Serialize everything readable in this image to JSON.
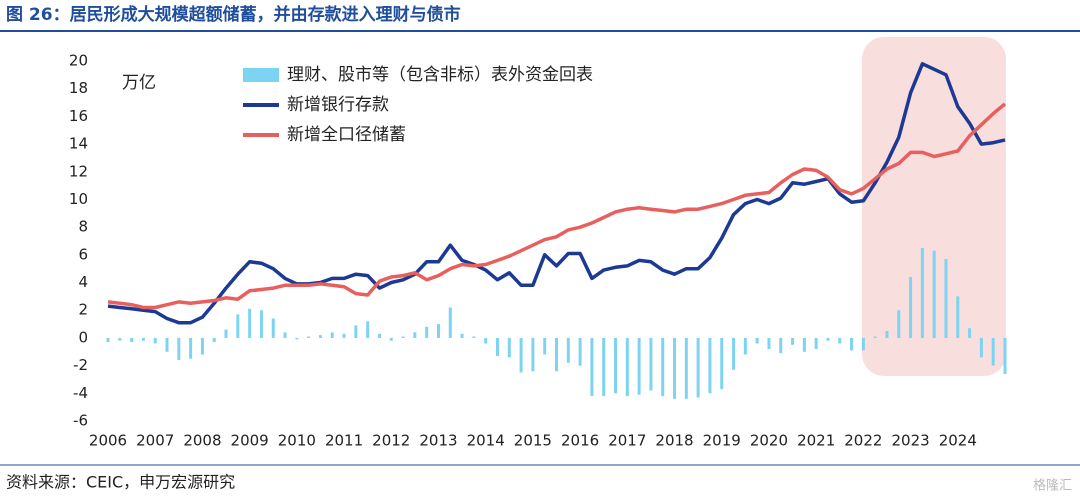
{
  "header": {
    "title": "图 26：居民形成大规模超额储蓄，并由存款进入理财与债市"
  },
  "chart_data": {
    "type": "combo",
    "unit_label": "万亿",
    "x": [
      2006,
      2006.25,
      2006.5,
      2006.75,
      2007,
      2007.25,
      2007.5,
      2007.75,
      2008,
      2008.25,
      2008.5,
      2008.75,
      2009,
      2009.25,
      2009.5,
      2009.75,
      2010,
      2010.25,
      2010.5,
      2010.75,
      2011,
      2011.25,
      2011.5,
      2011.75,
      2012,
      2012.25,
      2012.5,
      2012.75,
      2013,
      2013.25,
      2013.5,
      2013.75,
      2014,
      2014.25,
      2014.5,
      2014.75,
      2015,
      2015.25,
      2015.5,
      2015.75,
      2016,
      2016.25,
      2016.5,
      2016.75,
      2017,
      2017.25,
      2017.5,
      2017.75,
      2018,
      2018.25,
      2018.5,
      2018.75,
      2019,
      2019.25,
      2019.5,
      2019.75,
      2020,
      2020.25,
      2020.5,
      2020.75,
      2021,
      2021.25,
      2021.5,
      2021.75,
      2022,
      2022.25,
      2022.5,
      2022.75,
      2023,
      2023.25,
      2023.5,
      2023.75,
      2024,
      2024.25,
      2024.5,
      2024.75,
      2025
    ],
    "series": [
      {
        "name": "理财、股市等（包含非标）表外资金回表",
        "type": "bar",
        "color": "#7dd3f2",
        "values": [
          -0.3,
          -0.2,
          -0.3,
          -0.2,
          -0.4,
          -1.0,
          -1.6,
          -1.5,
          -1.2,
          -0.3,
          0.6,
          1.7,
          2.1,
          2.0,
          1.4,
          0.4,
          -0.1,
          0.1,
          0.2,
          0.4,
          0.3,
          0.9,
          1.2,
          0.3,
          -0.2,
          0.1,
          0.4,
          0.8,
          1.0,
          2.2,
          0.3,
          0.1,
          -0.4,
          -1.3,
          -1.4,
          -2.5,
          -2.4,
          -1.2,
          -2.4,
          -1.8,
          -2.0,
          -4.2,
          -4.2,
          -4.0,
          -4.2,
          -4.1,
          -3.8,
          -4.2,
          -4.4,
          -4.4,
          -4.3,
          -4.0,
          -3.7,
          -2.3,
          -1.2,
          -0.4,
          -0.8,
          -1.1,
          -0.5,
          -1.0,
          -0.8,
          -0.2,
          -0.4,
          -0.9,
          -0.9,
          0.1,
          0.5,
          2.0,
          4.4,
          6.5,
          6.3,
          5.7,
          3.0,
          0.7,
          -1.4,
          -2.0,
          -2.6
        ]
      },
      {
        "name": "新增银行存款",
        "type": "line",
        "color": "#1c3a94",
        "values": [
          2.3,
          2.2,
          2.1,
          2.0,
          1.9,
          1.4,
          1.1,
          1.1,
          1.5,
          2.5,
          3.6,
          4.6,
          5.5,
          5.4,
          5.0,
          4.3,
          3.9,
          3.9,
          4.0,
          4.3,
          4.3,
          4.6,
          4.5,
          3.6,
          4.0,
          4.2,
          4.6,
          5.5,
          5.5,
          6.7,
          5.6,
          5.3,
          4.9,
          4.2,
          4.7,
          3.8,
          3.8,
          6.0,
          5.2,
          6.1,
          6.1,
          4.3,
          4.9,
          5.1,
          5.2,
          5.6,
          5.5,
          4.9,
          4.6,
          5.0,
          5.0,
          5.8,
          7.2,
          8.9,
          9.7,
          10.0,
          9.7,
          10.1,
          11.2,
          11.1,
          11.3,
          11.5,
          10.4,
          9.8,
          9.9,
          11.2,
          12.7,
          14.5,
          17.7,
          19.8,
          19.4,
          19.0,
          16.7,
          15.5,
          14.0,
          14.1,
          14.3
        ]
      },
      {
        "name": "新增全口径储蓄",
        "type": "line",
        "color": "#e8605e",
        "values": [
          2.6,
          2.5,
          2.4,
          2.2,
          2.2,
          2.4,
          2.6,
          2.5,
          2.6,
          2.7,
          2.9,
          2.8,
          3.4,
          3.5,
          3.6,
          3.8,
          3.8,
          3.8,
          3.9,
          3.8,
          3.7,
          3.2,
          3.1,
          4.1,
          4.4,
          4.5,
          4.7,
          4.2,
          4.5,
          5.0,
          5.3,
          5.2,
          5.3,
          5.6,
          5.9,
          6.3,
          6.7,
          7.1,
          7.3,
          7.8,
          8.0,
          8.3,
          8.7,
          9.1,
          9.3,
          9.4,
          9.3,
          9.2,
          9.1,
          9.3,
          9.3,
          9.5,
          9.7,
          10.0,
          10.3,
          10.4,
          10.5,
          11.2,
          11.8,
          12.2,
          12.1,
          11.6,
          10.7,
          10.4,
          10.8,
          11.5,
          12.2,
          12.6,
          13.4,
          13.4,
          13.1,
          13.3,
          13.5,
          14.6,
          15.4,
          16.2,
          16.9
        ]
      }
    ],
    "xlim": [
      2006,
      2025
    ],
    "xticks": [
      2006,
      2007,
      2008,
      2009,
      2010,
      2011,
      2012,
      2013,
      2014,
      2015,
      2016,
      2017,
      2018,
      2019,
      2020,
      2021,
      2022,
      2023,
      2024
    ],
    "ylim": [
      -6,
      20
    ],
    "yticks": [
      -6,
      -4,
      -2,
      0,
      2,
      4,
      6,
      8,
      10,
      12,
      14,
      16,
      18,
      20
    ],
    "grid": false
  },
  "footer": {
    "source": "资料来源：CEIC，申万宏源研究",
    "watermark": "格隆汇"
  }
}
